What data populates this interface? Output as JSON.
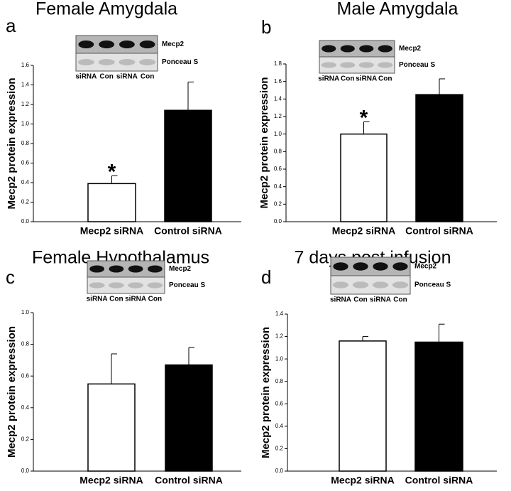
{
  "chart_data": [
    {
      "type": "bar",
      "panel": "a",
      "title": "Female Amygdala",
      "ylabel": "Mecp2 protein expression",
      "categories": [
        "Mecp2 siRNA",
        "Control siRNA"
      ],
      "values": [
        0.39,
        1.14
      ],
      "errors": [
        0.08,
        0.29
      ],
      "colors": [
        "#ffffff",
        "#000000"
      ],
      "ylim": [
        0,
        1.6
      ],
      "yticks": [
        {
          "value": 0,
          "label": "0.0"
        },
        {
          "value": 0.2,
          "label": "0.2"
        },
        {
          "value": 0.4,
          "label": "0.4"
        },
        {
          "value": 0.6,
          "label": "0.6"
        },
        {
          "value": 0.8,
          "label": "0.8"
        },
        {
          "value": 1.0,
          "label": "1.0"
        },
        {
          "value": 1.2,
          "label": "1.2"
        },
        {
          "value": 1.4,
          "label": "1.4"
        },
        {
          "value": 1.6,
          "label": "1.6"
        }
      ],
      "annotations": [
        {
          "text": "*",
          "category": "Mecp2 siRNA"
        }
      ],
      "blot": {
        "bands": [
          "Mecp2",
          "Ponceau S"
        ],
        "lanes": [
          "siRNA",
          "Con",
          "siRNA",
          "Con"
        ]
      }
    },
    {
      "type": "bar",
      "panel": "b",
      "title": "Male Amygdala",
      "ylabel": "Mecp2 protein expression",
      "categories": [
        "Mecp2 siRNA",
        "Control siRNA"
      ],
      "values": [
        1.0,
        1.45
      ],
      "errors": [
        0.14,
        0.18
      ],
      "colors": [
        "#ffffff",
        "#000000"
      ],
      "ylim": [
        0,
        1.8
      ],
      "yticks": [
        {
          "value": 0,
          "label": "0.0"
        },
        {
          "value": 0.2,
          "label": "0.2"
        },
        {
          "value": 0.4,
          "label": "0.4"
        },
        {
          "value": 0.6,
          "label": "0.6"
        },
        {
          "value": 0.8,
          "label": "0.8"
        },
        {
          "value": 1.0,
          "label": "1.0"
        },
        {
          "value": 1.2,
          "label": "1.2"
        },
        {
          "value": 1.4,
          "label": "1.4"
        },
        {
          "value": 1.6,
          "label": "1.6"
        },
        {
          "value": 1.8,
          "label": "1.8"
        }
      ],
      "annotations": [
        {
          "text": "*",
          "category": "Mecp2 siRNA"
        }
      ],
      "blot": {
        "bands": [
          "Mecp2",
          "Ponceau S"
        ],
        "lanes": [
          "siRNA",
          "Con",
          "siRNA",
          "Con"
        ]
      }
    },
    {
      "type": "bar",
      "panel": "c",
      "title": "Female Hypothalamus",
      "ylabel": "Mecp2 protein expression",
      "categories": [
        "Mecp2 siRNA",
        "Control siRNA"
      ],
      "values": [
        0.55,
        0.67
      ],
      "errors": [
        0.19,
        0.11
      ],
      "colors": [
        "#ffffff",
        "#000000"
      ],
      "ylim": [
        0,
        1.0
      ],
      "yticks": [
        {
          "value": 0,
          "label": "0.0"
        },
        {
          "value": 0.2,
          "label": "0.2"
        },
        {
          "value": 0.4,
          "label": "0.4"
        },
        {
          "value": 0.6,
          "label": "0.6"
        },
        {
          "value": 0.8,
          "label": "0.8"
        },
        {
          "value": 1.0,
          "label": "1.0"
        }
      ],
      "blot": {
        "bands": [
          "Mecp2",
          "Ponceau S"
        ],
        "lanes": [
          "siRNA",
          "Con",
          "siRNA",
          "Con"
        ]
      }
    },
    {
      "type": "bar",
      "panel": "d",
      "title": "7 days post infusion",
      "ylabel": "Mecp2 protein expression",
      "categories": [
        "Mecp2 siRNA",
        "Control siRNA"
      ],
      "values": [
        1.16,
        1.15
      ],
      "errors": [
        0.04,
        0.16
      ],
      "colors": [
        "#ffffff",
        "#000000"
      ],
      "ylim": [
        0,
        1.4
      ],
      "yticks": [
        {
          "value": 0,
          "label": "0.0"
        },
        {
          "value": 0.2,
          "label": "0.2"
        },
        {
          "value": 0.4,
          "label": "0.4"
        },
        {
          "value": 0.6,
          "label": "0.6"
        },
        {
          "value": 0.8,
          "label": "0.8"
        },
        {
          "value": 1.0,
          "label": "1.0"
        },
        {
          "value": 1.2,
          "label": "1.2"
        },
        {
          "value": 1.4,
          "label": "1.4"
        }
      ],
      "blot": {
        "bands": [
          "Mecp2",
          "Ponceau S"
        ],
        "lanes": [
          "siRNA",
          "Con",
          "siRNA",
          "Con"
        ]
      }
    }
  ]
}
